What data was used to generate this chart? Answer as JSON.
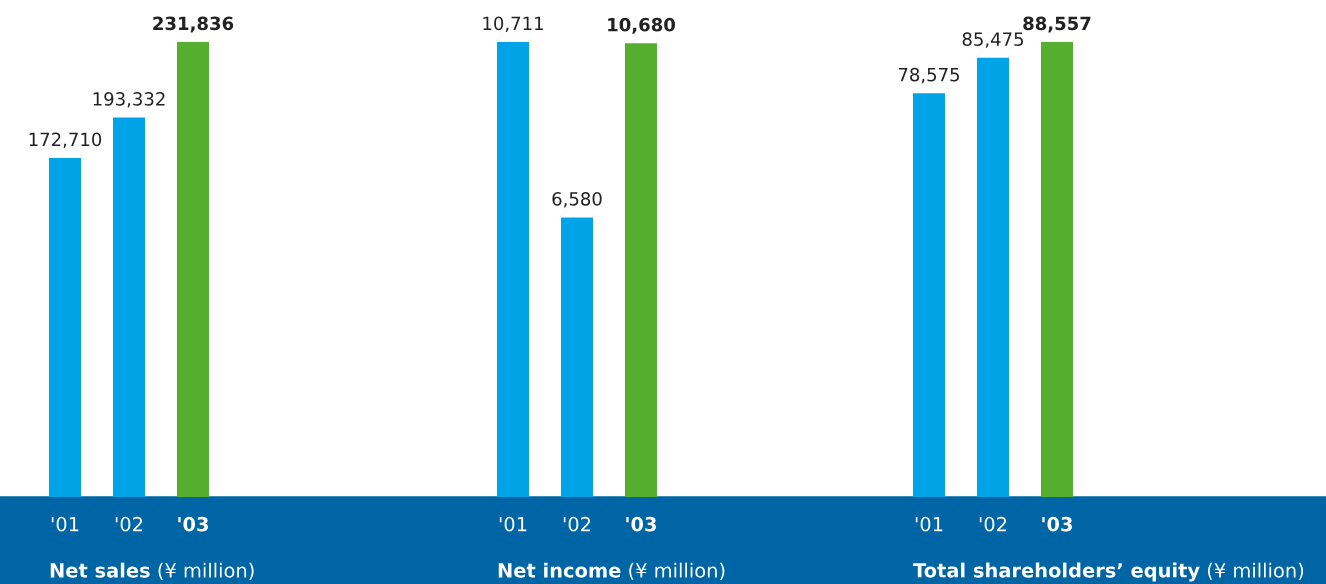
{
  "chart_data": [
    {
      "type": "bar",
      "title": "Net sales (¥ million)",
      "categories": [
        "'01",
        "'02",
        "'03"
      ],
      "values": [
        172710,
        193332,
        231836
      ],
      "colors": [
        "#00a3e6",
        "#00a3e6",
        "#55ae2e"
      ],
      "data_labels": true,
      "value_labels": [
        "172,710",
        "193,332",
        "231,836"
      ]
    },
    {
      "type": "bar",
      "title": "Net income (¥ million)",
      "categories": [
        "'01",
        "'02",
        "'03"
      ],
      "values": [
        10711,
        6580,
        10680
      ],
      "colors": [
        "#00a3e6",
        "#00a3e6",
        "#55ae2e"
      ],
      "data_labels": true,
      "value_labels": [
        "10,711",
        "6,580",
        "10,680"
      ]
    },
    {
      "type": "bar",
      "title": "Total shareholders’ equity (¥ million)",
      "categories": [
        "'01",
        "'02",
        "'03"
      ],
      "values": [
        78575,
        85475,
        88557
      ],
      "colors": [
        "#00a3e6",
        "#00a3e6",
        "#55ae2e"
      ],
      "data_labels": true,
      "value_labels": [
        "78,575",
        "85,475",
        "88,557"
      ]
    }
  ]
}
